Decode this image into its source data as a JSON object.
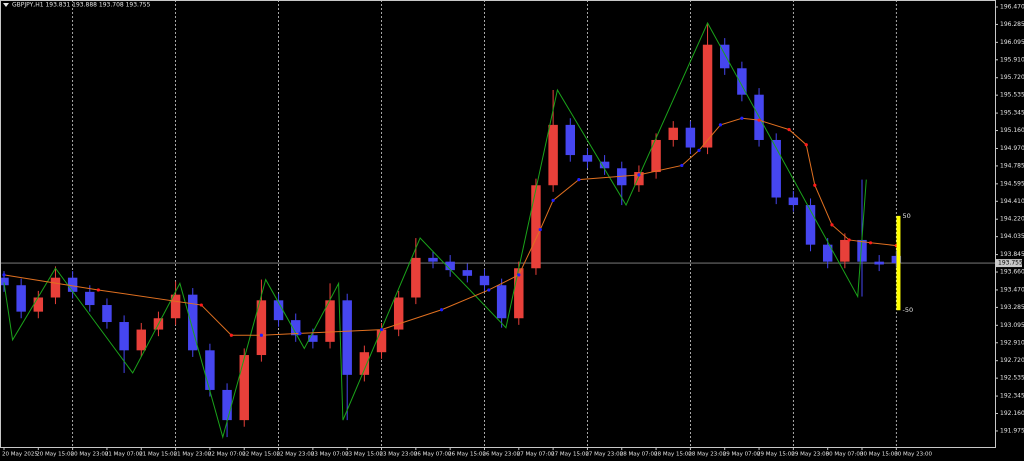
{
  "chart_data": {
    "type": "candlestick",
    "title": "GBPJPY,H1  193.831 193.888 193.708 193.755",
    "x": [
      0,
      4,
      8,
      12,
      16,
      20,
      24,
      28,
      32,
      36,
      40,
      44,
      48,
      52,
      56,
      60,
      64,
      68,
      72,
      76,
      80,
      84,
      88,
      92,
      96,
      100,
      104,
      108,
      112,
      116,
      120,
      124,
      128,
      132,
      136,
      140,
      144,
      148,
      152,
      156,
      160,
      164,
      168,
      172,
      176,
      180,
      184,
      188,
      192,
      196,
      200,
      204,
      208
    ],
    "open": [
      193.6,
      193.52,
      193.24,
      193.39,
      193.6,
      193.45,
      193.31,
      193.13,
      192.83,
      193.05,
      193.17,
      193.42,
      192.83,
      192.41,
      192.09,
      192.78,
      193.36,
      193.15,
      192.99,
      192.92,
      193.36,
      192.57,
      192.81,
      193.05,
      193.39,
      193.81,
      193.77,
      193.68,
      193.62,
      193.52,
      193.17,
      193.7,
      194.58,
      195.22,
      194.9,
      194.83,
      194.76,
      194.58,
      194.72,
      195.06,
      195.19,
      194.98,
      196.07,
      195.82,
      195.54,
      195.06,
      194.45,
      194.37,
      193.95,
      193.77,
      194.0,
      193.77,
      193.831
    ],
    "high": [
      193.67,
      193.59,
      193.46,
      193.72,
      193.67,
      193.52,
      193.38,
      193.2,
      193.12,
      193.24,
      193.56,
      193.49,
      192.9,
      192.48,
      192.85,
      193.58,
      193.43,
      193.22,
      193.06,
      193.54,
      193.43,
      192.88,
      193.12,
      193.46,
      194.02,
      193.88,
      193.84,
      193.75,
      193.69,
      193.59,
      193.77,
      194.65,
      195.59,
      195.29,
      194.97,
      194.9,
      194.83,
      194.79,
      195.13,
      195.26,
      195.26,
      196.3,
      196.14,
      195.89,
      195.61,
      195.13,
      194.52,
      194.44,
      194.02,
      194.07,
      194.64,
      193.84,
      193.888
    ],
    "low": [
      193.45,
      193.17,
      193.17,
      193.32,
      193.38,
      193.24,
      193.06,
      192.59,
      192.76,
      192.98,
      193.1,
      192.76,
      192.34,
      191.91,
      192.02,
      192.71,
      193.08,
      192.92,
      192.85,
      192.85,
      192.09,
      192.5,
      192.74,
      192.98,
      193.32,
      193.7,
      193.61,
      193.55,
      193.45,
      193.07,
      193.1,
      193.63,
      194.51,
      194.83,
      194.76,
      194.69,
      194.37,
      194.51,
      194.65,
      194.99,
      194.91,
      194.91,
      195.75,
      195.47,
      194.99,
      194.38,
      194.3,
      193.88,
      193.7,
      193.7,
      193.4,
      193.67,
      193.708
    ],
    "close": [
      193.52,
      193.24,
      193.39,
      193.6,
      193.45,
      193.31,
      193.13,
      192.83,
      193.05,
      193.17,
      193.42,
      192.83,
      192.41,
      192.09,
      192.78,
      193.36,
      193.15,
      192.99,
      192.92,
      193.36,
      192.57,
      192.81,
      193.05,
      193.39,
      193.81,
      193.77,
      193.68,
      193.62,
      193.52,
      193.17,
      193.7,
      194.58,
      195.22,
      194.9,
      194.83,
      194.76,
      194.58,
      194.72,
      195.06,
      195.19,
      194.98,
      196.07,
      195.82,
      195.54,
      195.06,
      194.45,
      194.37,
      193.95,
      193.77,
      194.0,
      193.77,
      193.74,
      193.755
    ],
    "up_color": "#e8403a",
    "down_color": "#4646f0",
    "zigzag": {
      "color": "#1aa31a",
      "x": [
        0,
        2,
        12,
        30,
        41,
        51,
        61,
        70,
        78,
        79,
        97,
        117,
        129,
        145,
        164,
        199,
        201
      ],
      "values": [
        193.55,
        192.94,
        193.7,
        192.59,
        193.54,
        191.91,
        193.58,
        192.85,
        193.54,
        192.09,
        194.02,
        193.07,
        195.59,
        194.37,
        196.3,
        193.4,
        194.64
      ]
    },
    "moving_average": {
      "color": "#e07020",
      "rising_color": "#2020ff",
      "falling_color": "#ff1a1a",
      "x": [
        0,
        22,
        46,
        53,
        60,
        69,
        88,
        102,
        113,
        120,
        125,
        128,
        134,
        148,
        158,
        162,
        167,
        172,
        176,
        183,
        187,
        189,
        193,
        197,
        202,
        208
      ],
      "values": [
        193.63,
        193.47,
        193.31,
        192.99,
        192.99,
        193.01,
        193.05,
        193.26,
        193.47,
        193.63,
        194.11,
        194.42,
        194.64,
        194.69,
        194.79,
        194.95,
        195.22,
        195.29,
        195.27,
        195.17,
        195.01,
        194.58,
        194.16,
        194.0,
        193.97,
        193.94
      ]
    },
    "current_price": 193.755,
    "pip_band": {
      "color": "#ffff00",
      "x": 208.5,
      "values": [
        194.255,
        193.255
      ],
      "labels": [
        50,
        -50
      ]
    },
    "xlim": [
      -0.93,
      231
    ],
    "ylim": [
      191.805,
      196.544
    ],
    "xticks": [
      {
        "value": 0,
        "label": "20 May 2025"
      },
      {
        "value": 8,
        "label": "20 May 15:00"
      },
      {
        "value": 16,
        "label": "20 May 23:00"
      },
      {
        "value": 24,
        "label": "21 May 07:00"
      },
      {
        "value": 32,
        "label": "21 May 15:00"
      },
      {
        "value": 40,
        "label": "21 May 23:00"
      },
      {
        "value": 48,
        "label": "22 May 07:00"
      },
      {
        "value": 56,
        "label": "22 May 15:00"
      },
      {
        "value": 64,
        "label": "22 May 23:00"
      },
      {
        "value": 72,
        "label": "23 May 07:00"
      },
      {
        "value": 80,
        "label": "23 May 15:00"
      },
      {
        "value": 88,
        "label": "23 May 23:00"
      },
      {
        "value": 96,
        "label": "26 May 07:00"
      },
      {
        "value": 104,
        "label": "26 May 15:00"
      },
      {
        "value": 112,
        "label": "26 May 23:00"
      },
      {
        "value": 120,
        "label": "27 May 07:00"
      },
      {
        "value": 128,
        "label": "27 May 15:00"
      },
      {
        "value": 136,
        "label": "27 May 23:00"
      },
      {
        "value": 144,
        "label": "28 May 07:00"
      },
      {
        "value": 152,
        "label": "28 May 15:00"
      },
      {
        "value": 160,
        "label": "28 May 23:00"
      },
      {
        "value": 168,
        "label": "29 May 07:00"
      },
      {
        "value": 176,
        "label": "29 May 15:00"
      },
      {
        "value": 184,
        "label": "29 May 23:00"
      },
      {
        "value": 192,
        "label": "30 May 07:00"
      },
      {
        "value": 200,
        "label": "30 May 15:00"
      },
      {
        "value": 208,
        "label": "30 May 23:00"
      }
    ],
    "yticks": [
      {
        "value": 196.47,
        "label": "196.470"
      },
      196.285,
      196.095,
      {
        "value": 195.91,
        "label": "195.910"
      },
      {
        "value": 195.72,
        "label": "195.720"
      },
      195.535,
      195.345,
      {
        "value": 195.16,
        "label": "195.160"
      },
      {
        "value": 194.97,
        "label": "194.970"
      },
      194.785,
      194.595,
      {
        "value": 194.41,
        "label": "194.410"
      },
      {
        "value": 194.22,
        "label": "194.220"
      },
      194.035,
      193.845,
      {
        "value": 193.66,
        "label": "193.660"
      },
      {
        "value": 193.47,
        "label": "193.470"
      },
      193.285,
      193.095,
      {
        "value": 192.91,
        "label": "192.910"
      },
      {
        "value": 192.72,
        "label": "192.720"
      },
      192.535,
      192.345,
      {
        "value": 192.16,
        "label": "192.160"
      },
      191.975
    ],
    "grid": true
  }
}
